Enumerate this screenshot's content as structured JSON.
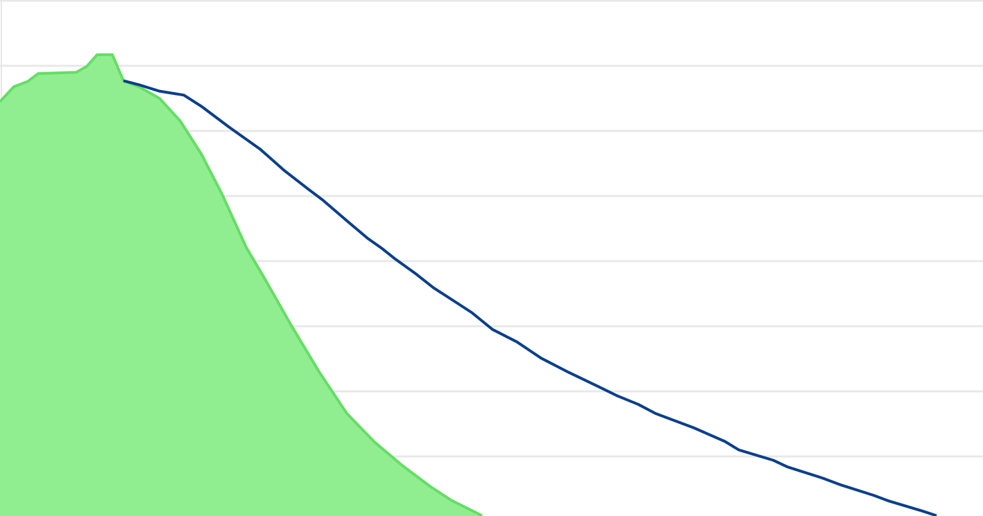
{
  "chart_data": {
    "type": "line",
    "xlim": [
      0,
      1417
    ],
    "ylim": [
      0,
      8
    ],
    "yticks": [
      0,
      1,
      2,
      3,
      4,
      5,
      6,
      7,
      8
    ],
    "grid": true,
    "series": [
      {
        "type": "area",
        "color": "#90ee90",
        "line_color": "#66dd66",
        "x": [
          0,
          20,
          40,
          55,
          110,
          125,
          140,
          162,
          178,
          200,
          230,
          260,
          290,
          320,
          355,
          380,
          420,
          460,
          500,
          540,
          580,
          620,
          650,
          695
        ],
        "values": [
          6.45,
          6.68,
          6.76,
          6.88,
          6.9,
          6.99,
          7.17,
          7.17,
          6.77,
          6.68,
          6.5,
          6.15,
          5.65,
          5.03,
          4.21,
          3.76,
          3.01,
          2.3,
          1.66,
          1.22,
          0.86,
          0.54,
          0.33,
          0.09
        ]
      },
      {
        "type": "line",
        "color": "#0a3f8a",
        "x": [
          178,
          200,
          230,
          265,
          290,
          330,
          375,
          410,
          445,
          465,
          500,
          530,
          550,
          570,
          600,
          625,
          680,
          710,
          745,
          780,
          820,
          865,
          890,
          920,
          945,
          1000,
          1045,
          1065,
          1115,
          1135,
          1185,
          1210,
          1260,
          1280,
          1330,
          1350
        ],
        "values": [
          6.77,
          6.71,
          6.61,
          6.55,
          6.38,
          6.06,
          5.72,
          5.39,
          5.1,
          4.94,
          4.62,
          4.35,
          4.2,
          4.03,
          3.8,
          3.59,
          3.21,
          2.95,
          2.76,
          2.51,
          2.29,
          2.06,
          1.93,
          1.8,
          1.66,
          1.44,
          1.23,
          1.1,
          0.94,
          0.84,
          0.67,
          0.57,
          0.4,
          0.32,
          0.16,
          0.09
        ]
      }
    ]
  }
}
